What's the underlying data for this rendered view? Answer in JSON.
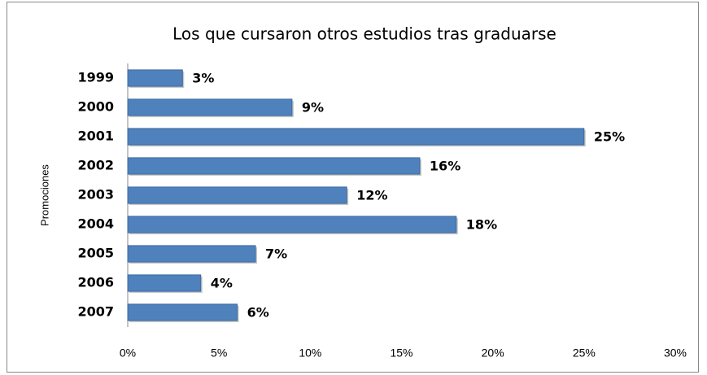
{
  "chart_data": {
    "type": "bar",
    "orientation": "horizontal",
    "title": "Los que cursaron otros estudios tras graduarse",
    "y_label": "Promociones",
    "categories": [
      "1999",
      "2000",
      "2001",
      "2002",
      "2003",
      "2004",
      "2005",
      "2006",
      "2007"
    ],
    "values": [
      3,
      9,
      25,
      16,
      12,
      18,
      7,
      4,
      6
    ],
    "value_labels": [
      "3%",
      "9%",
      "25%",
      "16%",
      "12%",
      "18%",
      "7%",
      "4%",
      "6%"
    ],
    "color": "#4f81bd",
    "xlim": [
      0,
      30
    ],
    "xticks": [
      {
        "value": 0,
        "label": "0%"
      },
      {
        "value": 5,
        "label": "5%"
      },
      {
        "value": 10,
        "label": "10%"
      },
      {
        "value": 15,
        "label": "15%"
      },
      {
        "value": 20,
        "label": "20%"
      },
      {
        "value": 25,
        "label": "25%"
      },
      {
        "value": 30,
        "label": "30%"
      }
    ],
    "grid": false
  }
}
